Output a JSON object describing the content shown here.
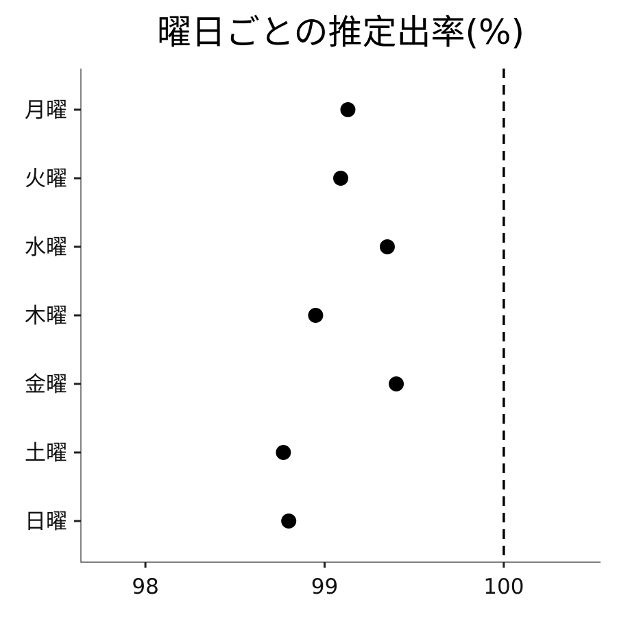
{
  "chart_data": {
    "type": "scatter",
    "title": "曜日ごとの推定出率(%)",
    "xlabel": "",
    "ylabel": "",
    "categories": [
      "月曜",
      "火曜",
      "水曜",
      "木曜",
      "金曜",
      "土曜",
      "日曜"
    ],
    "values": [
      99.13,
      99.09,
      99.35,
      98.95,
      99.4,
      98.77,
      98.8
    ],
    "xlim": [
      97.64,
      100.54
    ],
    "xticks": [
      98,
      99,
      100
    ],
    "xtick_labels": [
      "98",
      "99",
      "100"
    ],
    "reference_line": {
      "x": 100,
      "style": "dashed",
      "color": "#000000"
    },
    "point_color": "#000000",
    "grid": false,
    "legend": "none"
  }
}
